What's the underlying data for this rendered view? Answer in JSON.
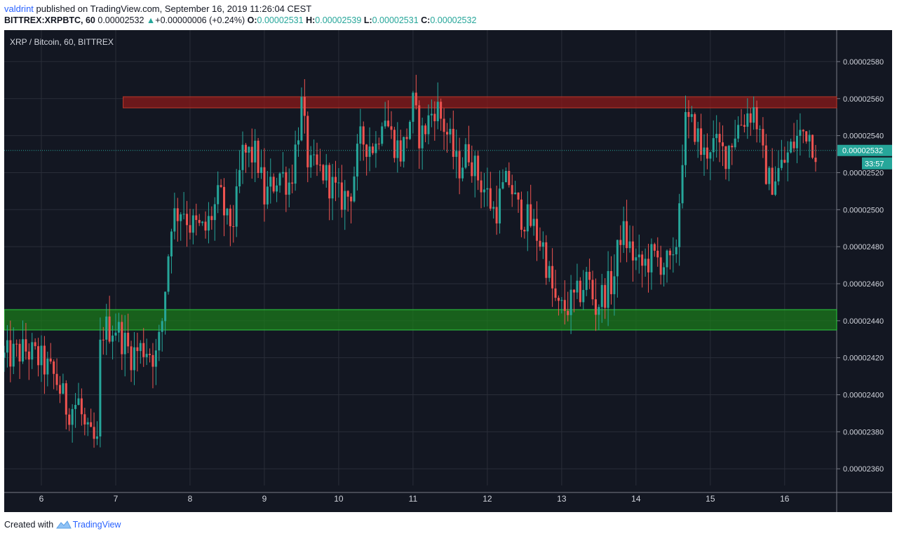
{
  "header": {
    "author": "valdrint",
    "published_text": " published on TradingView.com, September 16, 2019 11:26:04 CEST",
    "symbol": "BITTREX:XRPBTC, 60",
    "last": "0.00002532",
    "change": "+0.00000006 (+0.24%)",
    "o_label": "O:",
    "o_value": "0.00002531",
    "h_label": "H:",
    "h_value": "0.00002539",
    "l_label": "L:",
    "l_value": "0.00002531",
    "c_label": "C:",
    "c_value": "0.00002532"
  },
  "footer": {
    "created_with": "Created with",
    "brand": "TradingView"
  },
  "colors": {
    "background": "#131722",
    "grid": "#2a2e39",
    "up": "#26a69a",
    "down": "#ef5350",
    "axis_text": "#d1d4dc",
    "resistance_zone": "#8b1a1a",
    "support_zone": "#1b7a1b"
  },
  "chart_data": {
    "type": "candlestick",
    "title": "XRP / Bitcoin, 60, BITTREX",
    "x_ticks": [
      "6",
      "7",
      "8",
      "9",
      "10",
      "11",
      "12",
      "13",
      "14",
      "15",
      "16"
    ],
    "y_ticks": [
      "0.00002360",
      "0.00002380",
      "0.00002400",
      "0.00002420",
      "0.00002440",
      "0.00002460",
      "0.00002480",
      "0.00002500",
      "0.00002520",
      "0.00002540",
      "0.00002560",
      "0.00002580"
    ],
    "ylim": [
      2.351e-05,
      2.597e-05
    ],
    "current_price_label": "0.00002532",
    "countdown_label": "33:57",
    "current_price": 2.532e-05,
    "zones": [
      {
        "name": "resistance",
        "from": 2.555e-05,
        "to": 2.561e-05,
        "start_day": 7.1
      },
      {
        "name": "support",
        "from": 2.435e-05,
        "to": 2.446e-05,
        "start_day": 5.5
      }
    ],
    "x_day_range": [
      5.5,
      16.7
    ],
    "anchors": [
      [
        5.5,
        2.42
      ],
      [
        5.8,
        2.424
      ],
      [
        6.0,
        2.418
      ],
      [
        6.2,
        2.408
      ],
      [
        6.35,
        2.392
      ],
      [
        6.5,
        2.396
      ],
      [
        6.6,
        2.378
      ],
      [
        6.75,
        2.372
      ],
      [
        6.8,
        2.435
      ],
      [
        7.0,
        2.437
      ],
      [
        7.2,
        2.422
      ],
      [
        7.4,
        2.426
      ],
      [
        7.55,
        2.42
      ],
      [
        7.62,
        2.438
      ],
      [
        7.75,
        2.495
      ],
      [
        7.9,
        2.502
      ],
      [
        8.0,
        2.492
      ],
      [
        8.2,
        2.488
      ],
      [
        8.4,
        2.508
      ],
      [
        8.5,
        2.492
      ],
      [
        8.6,
        2.495
      ],
      [
        8.7,
        2.53
      ],
      [
        8.9,
        2.529
      ],
      [
        9.0,
        2.506
      ],
      [
        9.2,
        2.52
      ],
      [
        9.35,
        2.514
      ],
      [
        9.5,
        2.556
      ],
      [
        9.6,
        2.522
      ],
      [
        9.8,
        2.52
      ],
      [
        9.95,
        2.51
      ],
      [
        10.0,
        2.506
      ],
      [
        10.15,
        2.508
      ],
      [
        10.3,
        2.538
      ],
      [
        10.5,
        2.534
      ],
      [
        10.6,
        2.556
      ],
      [
        10.7,
        2.54
      ],
      [
        10.85,
        2.53
      ],
      [
        11.0,
        2.556
      ],
      [
        11.1,
        2.538
      ],
      [
        11.3,
        2.557
      ],
      [
        11.45,
        2.542
      ],
      [
        11.6,
        2.522
      ],
      [
        11.75,
        2.532
      ],
      [
        11.85,
        2.52
      ],
      [
        12.0,
        2.508
      ],
      [
        12.1,
        2.498
      ],
      [
        12.2,
        2.51
      ],
      [
        12.3,
        2.516
      ],
      [
        12.4,
        2.5
      ],
      [
        12.6,
        2.492
      ],
      [
        12.75,
        2.48
      ],
      [
        12.85,
        2.46
      ],
      [
        12.95,
        2.445
      ],
      [
        13.05,
        2.447
      ],
      [
        13.2,
        2.452
      ],
      [
        13.35,
        2.464
      ],
      [
        13.45,
        2.447
      ],
      [
        13.55,
        2.454
      ],
      [
        13.7,
        2.462
      ],
      [
        13.8,
        2.49
      ],
      [
        13.95,
        2.476
      ],
      [
        14.05,
        2.468
      ],
      [
        14.2,
        2.474
      ],
      [
        14.35,
        2.472
      ],
      [
        14.5,
        2.468
      ],
      [
        14.55,
        2.486
      ],
      [
        14.65,
        2.546
      ],
      [
        14.8,
        2.544
      ],
      [
        14.9,
        2.528
      ],
      [
        15.0,
        2.536
      ],
      [
        15.2,
        2.53
      ],
      [
        15.35,
        2.544
      ],
      [
        15.5,
        2.552
      ],
      [
        15.6,
        2.554
      ],
      [
        15.7,
        2.528
      ],
      [
        15.8,
        2.514
      ],
      [
        15.9,
        2.52
      ],
      [
        16.0,
        2.526
      ],
      [
        16.15,
        2.538
      ],
      [
        16.3,
        2.544
      ],
      [
        16.43,
        2.532
      ]
    ]
  }
}
